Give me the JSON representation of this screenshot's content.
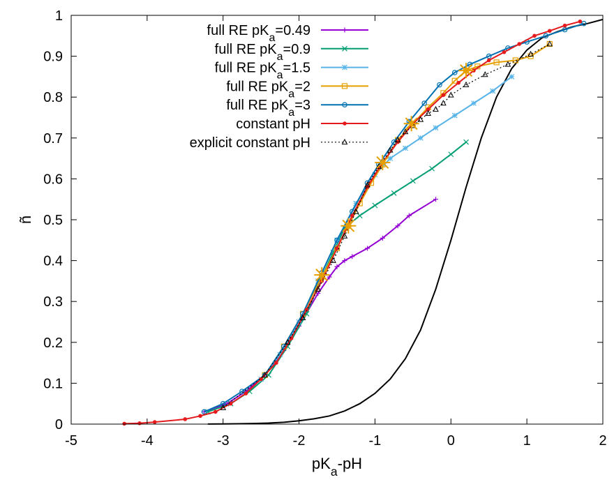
{
  "chart_data": {
    "type": "line",
    "title": "",
    "xlabel": "pK_a-pH",
    "ylabel": "ñ",
    "xlim": [
      -5,
      2
    ],
    "ylim": [
      0,
      1
    ],
    "xticks": [
      -5,
      -4,
      -3,
      -2,
      -1,
      0,
      1,
      2
    ],
    "yticks": [
      0,
      0.1,
      0.2,
      0.3,
      0.4,
      0.5,
      0.6,
      0.7,
      0.8,
      0.9,
      1
    ],
    "grid": false,
    "legend_position": "top-right",
    "series": [
      {
        "name": "full RE pK_a=0.49",
        "color": "#9400d3",
        "marker": "plus",
        "dash": "",
        "x": [
          -3.25,
          -2.95,
          -2.7,
          -2.45,
          -2.2,
          -2.0,
          -1.75,
          -1.6,
          -1.5,
          -1.4,
          -1.3,
          -1.1,
          -0.9,
          -0.7,
          -0.55,
          -0.2
        ],
        "y": [
          0.03,
          0.05,
          0.08,
          0.12,
          0.18,
          0.24,
          0.32,
          0.36,
          0.385,
          0.4,
          0.41,
          0.43,
          0.455,
          0.485,
          0.51,
          0.55
        ]
      },
      {
        "name": "full RE pK_a=0.9",
        "color": "#009e73",
        "marker": "cross",
        "dash": "",
        "x": [
          -3.2,
          -2.9,
          -2.65,
          -2.4,
          -2.15,
          -1.9,
          -1.7,
          -1.55,
          -1.4,
          -1.2,
          -1.0,
          -0.75,
          -0.5,
          -0.25,
          0.0,
          0.2
        ],
        "y": [
          0.03,
          0.05,
          0.08,
          0.12,
          0.19,
          0.27,
          0.36,
          0.42,
          0.48,
          0.51,
          0.535,
          0.565,
          0.595,
          0.625,
          0.66,
          0.69
        ]
      },
      {
        "name": "full RE pK_a=1.5",
        "color": "#56b4e9",
        "marker": "star",
        "dash": "",
        "x": [
          -2.5,
          -2.25,
          -2.0,
          -1.75,
          -1.5,
          -1.25,
          -1.0,
          -0.8,
          -0.6,
          -0.4,
          -0.2,
          0.05,
          0.3,
          0.55,
          0.8
        ],
        "y": [
          0.11,
          0.17,
          0.25,
          0.35,
          0.45,
          0.54,
          0.61,
          0.65,
          0.675,
          0.7,
          0.725,
          0.755,
          0.785,
          0.815,
          0.85
        ]
      },
      {
        "name": "full RE pK_a=2",
        "color": "#e69f00",
        "marker": "box",
        "dash": "",
        "x": [
          -2.45,
          -2.2,
          -1.95,
          -1.7,
          -1.5,
          -1.35,
          -1.2,
          -1.05,
          -0.9,
          -0.7,
          -0.5,
          -0.3,
          -0.1,
          0.05,
          0.2,
          0.35,
          0.6,
          0.85,
          1.05,
          1.3
        ],
        "y": [
          0.12,
          0.19,
          0.27,
          0.36,
          0.43,
          0.485,
          0.54,
          0.59,
          0.635,
          0.695,
          0.735,
          0.775,
          0.81,
          0.84,
          0.865,
          0.875,
          0.885,
          0.89,
          0.9,
          0.93
        ]
      },
      {
        "name": "full RE pK_a=3",
        "color": "#0072b2",
        "marker": "circle",
        "dash": "",
        "x": [
          -3.25,
          -3.0,
          -2.75,
          -2.45,
          -2.2,
          -1.95,
          -1.7,
          -1.5,
          -1.3,
          -1.1,
          -0.95,
          -0.75,
          -0.55,
          -0.35,
          -0.15,
          0.05,
          0.25,
          0.5,
          0.75,
          1.0,
          1.25,
          1.5,
          1.75
        ],
        "y": [
          0.03,
          0.05,
          0.08,
          0.12,
          0.19,
          0.27,
          0.37,
          0.45,
          0.52,
          0.59,
          0.635,
          0.69,
          0.74,
          0.785,
          0.83,
          0.86,
          0.88,
          0.9,
          0.92,
          0.935,
          0.95,
          0.965,
          0.98
        ]
      },
      {
        "name": "constant pH",
        "color": "#e41a1c",
        "marker": "dot",
        "dash": "",
        "x": [
          -4.3,
          -4.1,
          -3.9,
          -3.5,
          -3.3,
          -3.1,
          -2.9,
          -2.7,
          -2.5,
          -2.3,
          -2.1,
          -1.9,
          -1.7,
          -1.5,
          -1.3,
          -1.1,
          -0.9,
          -0.7,
          -0.5,
          -0.3,
          -0.1,
          0.1,
          0.3,
          0.5,
          0.7,
          0.9,
          1.1,
          1.3,
          1.5,
          1.7
        ],
        "y": [
          0.001,
          0.002,
          0.005,
          0.012,
          0.02,
          0.03,
          0.05,
          0.075,
          0.11,
          0.15,
          0.21,
          0.28,
          0.35,
          0.43,
          0.51,
          0.58,
          0.64,
          0.69,
          0.735,
          0.77,
          0.805,
          0.835,
          0.865,
          0.89,
          0.91,
          0.93,
          0.95,
          0.962,
          0.975,
          0.985
        ]
      },
      {
        "name": "explicit constant pH",
        "color": "#000000",
        "marker": "triangle",
        "dash": "2,3",
        "x": [
          -3.0,
          -2.45,
          -2.15,
          -1.95,
          -1.75,
          -1.55,
          -1.4,
          -1.25,
          -1.1,
          -0.95,
          -0.8,
          -0.7,
          -0.6,
          -0.5,
          -0.4,
          -0.3,
          -0.2,
          -0.1,
          0.0,
          0.2,
          0.45,
          0.75,
          1.05,
          1.3
        ],
        "y": [
          0.04,
          0.12,
          0.2,
          0.26,
          0.33,
          0.4,
          0.46,
          0.52,
          0.585,
          0.63,
          0.67,
          0.695,
          0.715,
          0.73,
          0.745,
          0.76,
          0.77,
          0.785,
          0.805,
          0.83,
          0.855,
          0.88,
          0.905,
          0.93
        ]
      }
    ],
    "curve": {
      "color": "#000000",
      "x": [
        -3.2,
        -3.0,
        -2.8,
        -2.6,
        -2.4,
        -2.2,
        -2.0,
        -1.8,
        -1.6,
        -1.4,
        -1.2,
        -1.0,
        -0.8,
        -0.6,
        -0.4,
        -0.2,
        0.0,
        0.2,
        0.4,
        0.6,
        0.8,
        1.0,
        1.2,
        1.4,
        1.6,
        1.8,
        2.0
      ],
      "y": [
        0.0002,
        0.0004,
        0.0008,
        0.0015,
        0.0025,
        0.0045,
        0.008,
        0.013,
        0.02,
        0.032,
        0.05,
        0.075,
        0.11,
        0.16,
        0.23,
        0.33,
        0.45,
        0.58,
        0.7,
        0.8,
        0.87,
        0.915,
        0.945,
        0.96,
        0.972,
        0.98,
        0.99
      ]
    },
    "highlight": {
      "color": "#e69f00",
      "marker": "asterisk",
      "x": [
        -1.7,
        -1.35,
        -0.9,
        -0.52,
        0.2
      ],
      "y": [
        0.365,
        0.485,
        0.64,
        0.735,
        0.865
      ]
    }
  }
}
